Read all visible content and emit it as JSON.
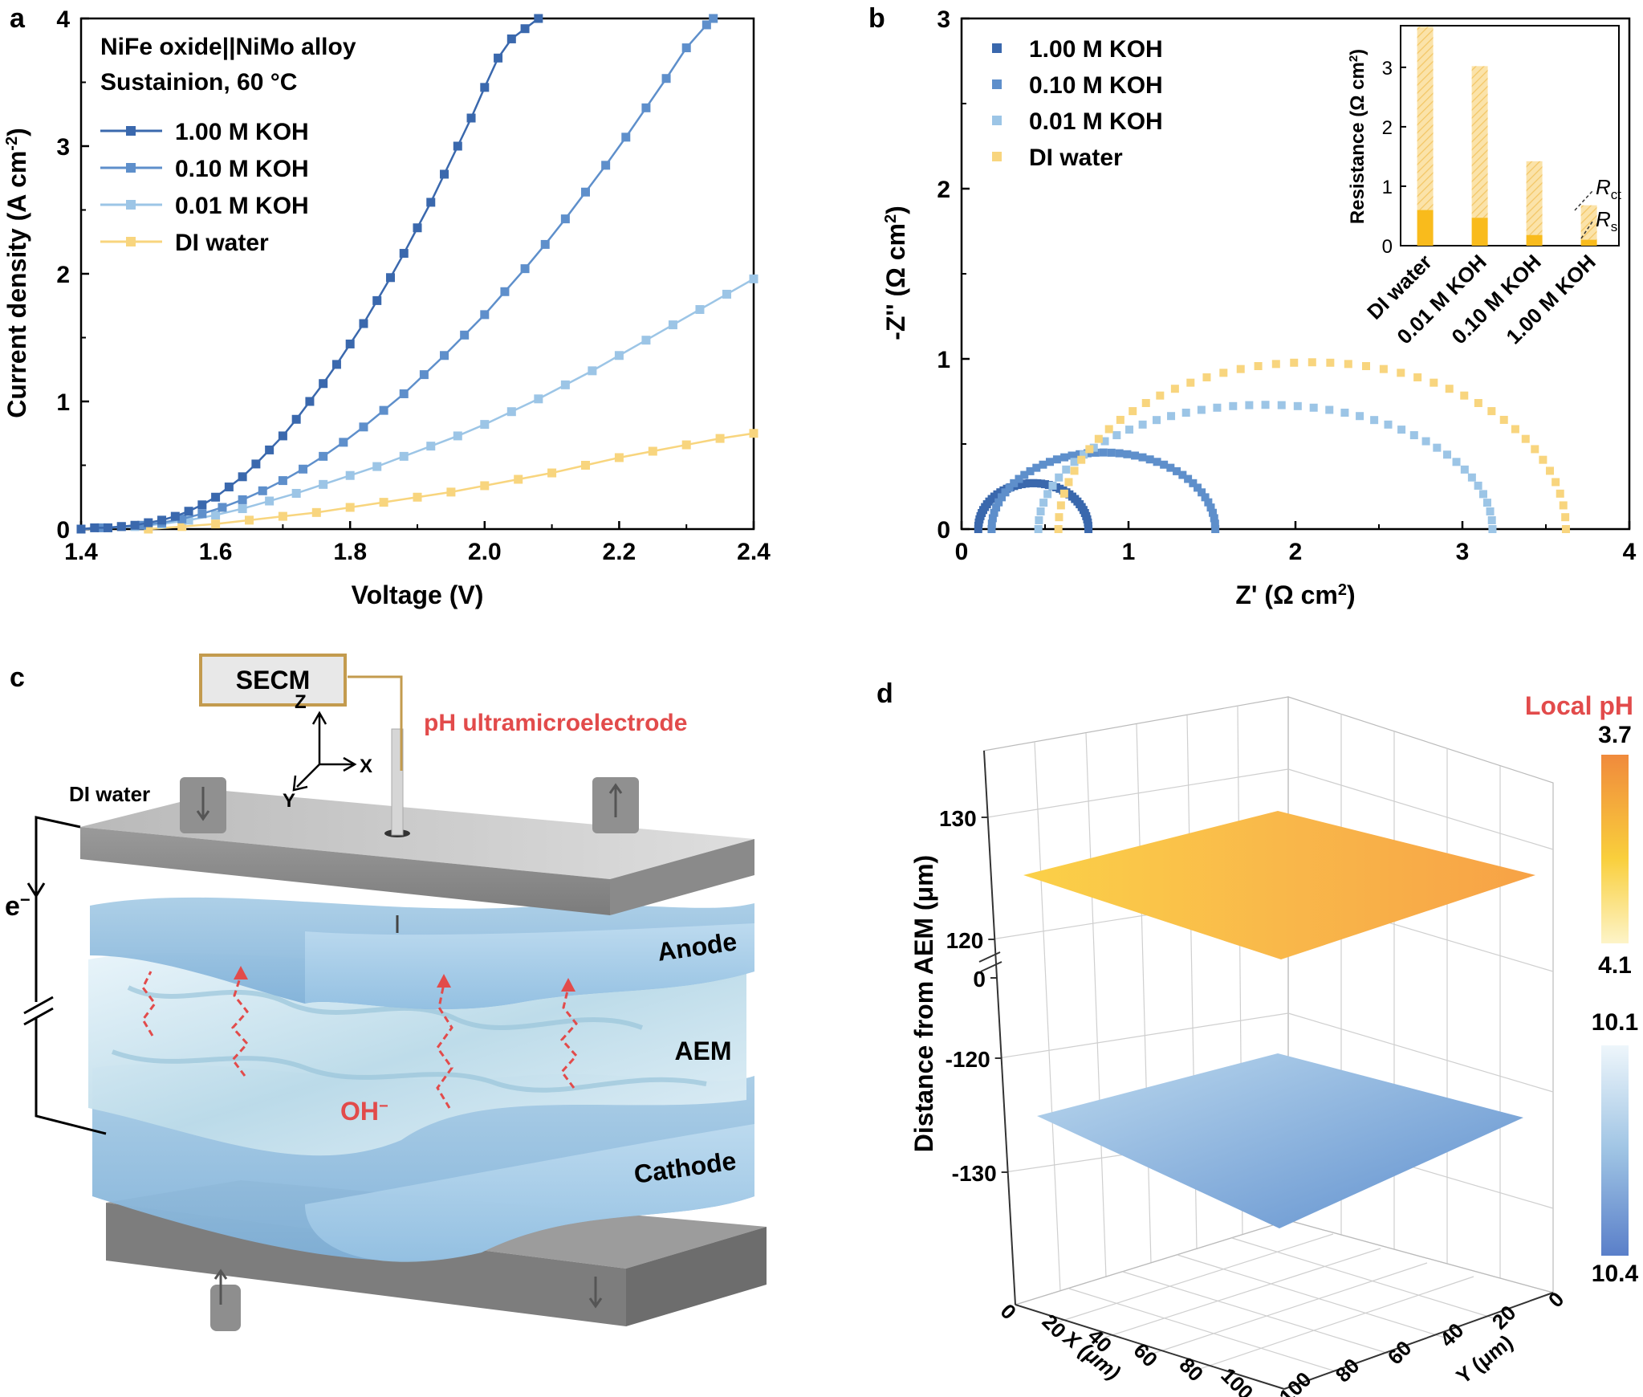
{
  "panel_labels": {
    "a": "a",
    "b": "b",
    "c": "c",
    "d": "d"
  },
  "colors": {
    "koh100": "#3a68ad",
    "koh010": "#5e8fcb",
    "koh001": "#9cc5e6",
    "di": "#f8d57e",
    "rs_bar": "#f9bb1c",
    "rct_bar": "#f9d47a",
    "red": "#e24b4b"
  },
  "chart_data": [
    {
      "id": "a",
      "type": "line",
      "title": "",
      "annotations": [
        "NiFe oxide||NiMo alloy",
        "Sustainion, 60 °C"
      ],
      "xlabel": "Voltage (V)",
      "ylabel_main": "Current density (A cm",
      "ylabel_sup": "-2",
      "ylabel_end": ")",
      "xlim": [
        1.4,
        2.4
      ],
      "ylim": [
        0,
        4
      ],
      "xticks": [
        "1.4",
        "1.6",
        "1.8",
        "2.0",
        "2.2",
        "2.4"
      ],
      "yticks": [
        "0",
        "1",
        "2",
        "3",
        "4"
      ],
      "legend": "upper-left",
      "series": [
        {
          "name": "1.00 M KOH",
          "color": "#3a68ad",
          "x": [
            1.4,
            1.42,
            1.44,
            1.46,
            1.48,
            1.5,
            1.52,
            1.54,
            1.56,
            1.58,
            1.6,
            1.62,
            1.64,
            1.66,
            1.68,
            1.7,
            1.72,
            1.74,
            1.76,
            1.78,
            1.8,
            1.82,
            1.84,
            1.86,
            1.88,
            1.9,
            1.92,
            1.94,
            1.96,
            1.98,
            2.0,
            2.02,
            2.04,
            2.06,
            2.08
          ],
          "y": [
            0.0,
            0.01,
            0.01,
            0.02,
            0.03,
            0.05,
            0.07,
            0.1,
            0.14,
            0.19,
            0.25,
            0.33,
            0.41,
            0.51,
            0.62,
            0.73,
            0.86,
            1.0,
            1.14,
            1.29,
            1.45,
            1.61,
            1.79,
            1.97,
            2.16,
            2.36,
            2.56,
            2.78,
            3.0,
            3.22,
            3.46,
            3.69,
            3.84,
            3.92,
            4.0
          ]
        },
        {
          "name": "0.10 M KOH",
          "color": "#5e8fcb",
          "x": [
            1.4,
            1.43,
            1.46,
            1.49,
            1.52,
            1.55,
            1.58,
            1.61,
            1.64,
            1.67,
            1.7,
            1.73,
            1.76,
            1.79,
            1.82,
            1.85,
            1.88,
            1.91,
            1.94,
            1.97,
            2.0,
            2.03,
            2.06,
            2.09,
            2.12,
            2.15,
            2.18,
            2.21,
            2.24,
            2.27,
            2.3,
            2.33,
            2.34
          ],
          "y": [
            0.0,
            0.01,
            0.02,
            0.03,
            0.05,
            0.08,
            0.12,
            0.17,
            0.23,
            0.3,
            0.38,
            0.47,
            0.57,
            0.68,
            0.8,
            0.93,
            1.06,
            1.21,
            1.36,
            1.52,
            1.68,
            1.86,
            2.04,
            2.23,
            2.43,
            2.64,
            2.85,
            3.07,
            3.3,
            3.53,
            3.77,
            3.95,
            4.0
          ]
        },
        {
          "name": "0.01 M KOH",
          "color": "#9cc5e6",
          "x": [
            1.4,
            1.44,
            1.48,
            1.52,
            1.56,
            1.6,
            1.64,
            1.68,
            1.72,
            1.76,
            1.8,
            1.84,
            1.88,
            1.92,
            1.96,
            2.0,
            2.04,
            2.08,
            2.12,
            2.16,
            2.2,
            2.24,
            2.28,
            2.32,
            2.36,
            2.4
          ],
          "y": [
            0.0,
            0.01,
            0.02,
            0.04,
            0.07,
            0.11,
            0.16,
            0.22,
            0.28,
            0.35,
            0.42,
            0.49,
            0.57,
            0.65,
            0.73,
            0.82,
            0.92,
            1.02,
            1.13,
            1.24,
            1.36,
            1.48,
            1.6,
            1.72,
            1.84,
            1.96
          ]
        },
        {
          "name": "DI water",
          "color": "#f8d57e",
          "x": [
            1.5,
            1.55,
            1.6,
            1.65,
            1.7,
            1.75,
            1.8,
            1.85,
            1.9,
            1.95,
            2.0,
            2.05,
            2.1,
            2.15,
            2.2,
            2.25,
            2.3,
            2.35,
            2.4
          ],
          "y": [
            0.0,
            0.02,
            0.04,
            0.07,
            0.1,
            0.13,
            0.17,
            0.21,
            0.25,
            0.29,
            0.34,
            0.39,
            0.44,
            0.5,
            0.56,
            0.61,
            0.66,
            0.71,
            0.75
          ]
        }
      ]
    },
    {
      "id": "b",
      "type": "scatter",
      "xlabel": "Z' (Ω cm",
      "xlabel_sup": "2",
      "xlabel_end": ")",
      "ylabel": "-Z'' (Ω cm",
      "ylabel_sup": "2",
      "ylabel_end": ")",
      "xlim": [
        0,
        4
      ],
      "ylim": [
        0,
        3
      ],
      "xticks": [
        "0",
        "1",
        "2",
        "3",
        "4"
      ],
      "yticks": [
        "0",
        "1",
        "2",
        "3"
      ],
      "legend": "upper-left",
      "series": [
        {
          "name": "1.00 M KOH",
          "color": "#3a68ad",
          "arc": {
            "start": 0.1,
            "end": 0.76,
            "peak": 0.27
          }
        },
        {
          "name": "0.10 M KOH",
          "color": "#5e8fcb",
          "arc": {
            "start": 0.18,
            "end": 1.52,
            "peak": 0.45
          }
        },
        {
          "name": "0.01 M KOH",
          "color": "#9cc5e6",
          "arc": {
            "start": 0.46,
            "end": 3.18,
            "peak": 0.73
          }
        },
        {
          "name": "DI water",
          "color": "#f8d57e",
          "arc": {
            "start": 0.58,
            "end": 3.62,
            "peak": 0.98
          }
        }
      ],
      "inset": {
        "type": "stacked-bar",
        "ylabel": "Resistance (Ω cm",
        "ylabel_sup": "2",
        "ylabel_end": ")",
        "ylim": [
          0,
          3.7
        ],
        "yticks": [
          "0",
          "1",
          "2",
          "3"
        ],
        "categories": [
          "DI water",
          "0.01 M KOH",
          "0.10 M KOH",
          "1.00 M KOH"
        ],
        "series": [
          {
            "name": "Rs",
            "values": [
              0.6,
              0.47,
              0.18,
              0.1
            ]
          },
          {
            "name": "Rct",
            "values": [
              3.08,
              2.55,
              1.24,
              0.58
            ]
          }
        ],
        "annotations": {
          "rct_main": "R",
          "rct_sub": "ct",
          "rs_main": "R",
          "rs_sub": "s"
        }
      }
    },
    {
      "id": "d",
      "type": "surface3d",
      "zlabel": "Distance from AEM (μm)",
      "xlabel": "X (μm)",
      "ylabel": "Y (μm)",
      "xticks": [
        "0",
        "20",
        "40",
        "60",
        "80",
        "100"
      ],
      "yticks": [
        "0",
        "20",
        "40",
        "60",
        "80",
        "100"
      ],
      "zticks_upper": [
        "130",
        "120"
      ],
      "zticks_lower": [
        "0",
        "-120",
        "-130"
      ],
      "colorbar_title": "Local pH",
      "colorbar_upper": {
        "top": "3.7",
        "bottom": "4.1"
      },
      "colorbar_lower": {
        "top": "10.1",
        "bottom": "10.4"
      },
      "planes": [
        {
          "name": "anode-side plane",
          "z": 125,
          "ph": 3.9
        },
        {
          "name": "cathode-side plane",
          "z": -125,
          "ph": 10.25
        }
      ]
    }
  ],
  "diagram_c": {
    "secm": "SECM",
    "probe": "pH ultramicroelectrode",
    "axis_z": "Z",
    "axis_x": "X",
    "axis_y": "Y",
    "di_water": "DI water",
    "electron": "e",
    "electron_sup": "−",
    "anode": "Anode",
    "aem": "AEM",
    "cathode": "Cathode",
    "hydroxide": "OH",
    "hydroxide_sup": "−"
  }
}
